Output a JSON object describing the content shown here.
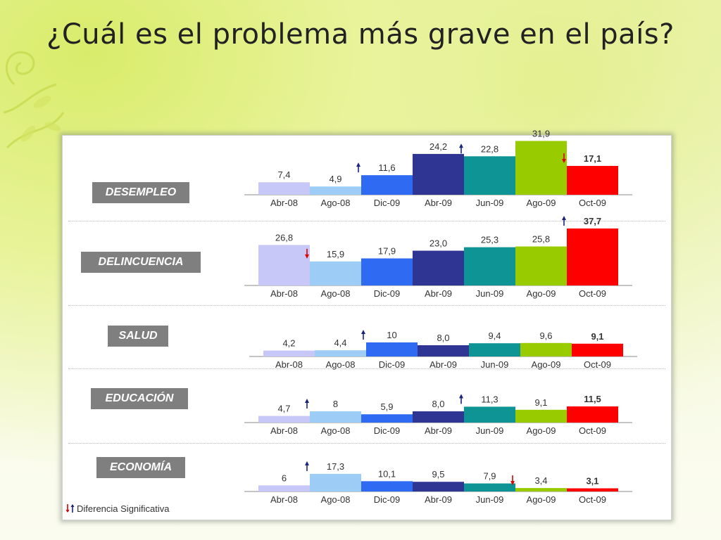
{
  "title": "¿Cuál es el problema más grave en el país?",
  "legend_label": "Diferencia Significativa",
  "colors": {
    "Abr-08": "#c8c8f8",
    "Ago-08": "#9dcdf7",
    "Dic-09": "#2e6bf2",
    "Abr-09": "#2e3593",
    "Jun-09": "#0e9494",
    "Ago-09": "#99cc00",
    "Oct-09": "#ff0000",
    "arrow_up": "#1a237e",
    "arrow_down": "#e00000"
  },
  "chart_data": [
    {
      "type": "bar",
      "label": "DESEMPLEO",
      "categories": [
        "Abr-08",
        "Ago-08",
        "Dic-09",
        "Abr-09",
        "Jun-09",
        "Ago-09",
        "Oct-09"
      ],
      "values": [
        7.4,
        4.9,
        11.6,
        24.2,
        22.8,
        31.9,
        17.1
      ],
      "value_labels": [
        "7,4",
        "4,9",
        "11,6",
        "24,2",
        "22,8",
        "31,9",
        "17,1"
      ],
      "markers": [
        "",
        "",
        "up",
        "",
        "up",
        "",
        "down"
      ]
    },
    {
      "type": "bar",
      "label": "DELINCUENCIA",
      "categories": [
        "Abr-08",
        "Ago-08",
        "Dic-09",
        "Abr-09",
        "Jun-09",
        "Ago-09",
        "Oct-09"
      ],
      "values": [
        26.8,
        15.9,
        17.9,
        23.0,
        25.3,
        25.8,
        37.7
      ],
      "value_labels": [
        "26,8",
        "15,9",
        "17,9",
        "23,0",
        "25,3",
        "25,8",
        "37,7"
      ],
      "markers": [
        "",
        "down",
        "",
        "",
        "",
        "",
        "up"
      ]
    },
    {
      "type": "bar",
      "label": "SALUD",
      "categories": [
        "Abr-08",
        "Ago-08",
        "Dic-09",
        "Abr-09",
        "Jun-09",
        "Ago-09",
        "Oct-09"
      ],
      "values": [
        4.2,
        4.4,
        10,
        8.0,
        9.4,
        9.6,
        9.1
      ],
      "value_labels": [
        "4,2",
        "4,4",
        "10",
        "8,0",
        "9,4",
        "9,6",
        "9,1"
      ],
      "markers": [
        "",
        "",
        "up",
        "",
        "",
        "",
        ""
      ]
    },
    {
      "type": "bar",
      "label": "EDUCACIÓN",
      "categories": [
        "Abr-08",
        "Ago-08",
        "Dic-09",
        "Abr-09",
        "Jun-09",
        "Ago-09",
        "Oct-09"
      ],
      "values": [
        4.7,
        8,
        5.9,
        8.0,
        11.3,
        9.1,
        11.5
      ],
      "value_labels": [
        "4,7",
        "8",
        "5,9",
        "8,0",
        "11,3",
        "9,1",
        "11,5"
      ],
      "markers": [
        "",
        "up",
        "",
        "",
        "up",
        "",
        ""
      ]
    },
    {
      "type": "bar",
      "label": "ECONOMÍA",
      "categories": [
        "Abr-08",
        "Ago-08",
        "Dic-09",
        "Abr-09",
        "Jun-09",
        "Ago-09",
        "Oct-09"
      ],
      "values": [
        6,
        17.3,
        10.1,
        9.5,
        7.9,
        3.4,
        3.1
      ],
      "value_labels": [
        "6",
        "17,3",
        "10,1",
        "9,5",
        "7,9",
        "3,4",
        "3,1"
      ],
      "markers": [
        "",
        "up",
        "",
        "",
        "",
        "down",
        ""
      ]
    }
  ]
}
